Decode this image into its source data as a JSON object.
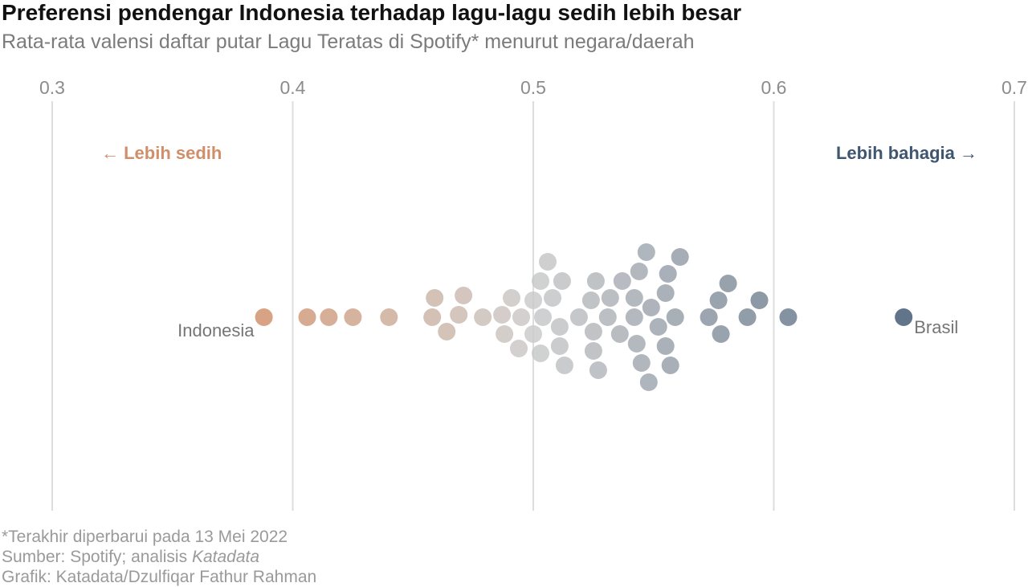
{
  "title": "Preferensi pendengar Indonesia terhadap lagu-lagu sedih lebih besar",
  "subtitle": "Rata-rata valensi daftar putar Lagu Teratas di Spotify* menurut negara/daerah",
  "footer": {
    "note": "*Terakhir diperbarui pada 13 Mei 2022",
    "source_prefix": "Sumber: Spotify; analisis ",
    "source_italic": "Katadata",
    "credit": "Grafik: Katadata/Dzulfiqar Fathur Rahman"
  },
  "colors": {
    "sad": "#cf8f6a",
    "neutral": "#c9c9c9",
    "happy": "#3f5670",
    "grid": "#dddddd",
    "tick": "#8c8c8c",
    "label": "#757575"
  },
  "chart_data": {
    "type": "scatter",
    "subtype": "beeswarm",
    "xlim": [
      0.3,
      0.7
    ],
    "ticks": [
      "0.3",
      "0.4",
      "0.5",
      "0.6",
      "0.7"
    ],
    "tick_values": [
      0.3,
      0.4,
      0.5,
      0.6,
      0.7
    ],
    "grid": true,
    "annotations": {
      "left": "← Lebih sedih",
      "right": "Lebih bahagia →"
    },
    "labeled_points": [
      {
        "label": "Indonesia",
        "x": 0.388
      },
      {
        "label": "Brasil",
        "x": 0.654
      }
    ],
    "values": [
      0.388,
      0.406,
      0.415,
      0.425,
      0.44,
      0.458,
      0.459,
      0.464,
      0.469,
      0.471,
      0.479,
      0.487,
      0.488,
      0.491,
      0.494,
      0.495,
      0.5,
      0.5,
      0.503,
      0.503,
      0.504,
      0.506,
      0.508,
      0.511,
      0.511,
      0.512,
      0.513,
      0.519,
      0.524,
      0.525,
      0.525,
      0.526,
      0.527,
      0.531,
      0.532,
      0.536,
      0.537,
      0.542,
      0.542,
      0.543,
      0.544,
      0.545,
      0.547,
      0.548,
      0.549,
      0.552,
      0.555,
      0.555,
      0.557,
      0.556,
      0.559,
      0.561,
      0.573,
      0.577,
      0.578,
      0.581,
      0.589,
      0.594,
      0.606,
      0.654
    ]
  }
}
